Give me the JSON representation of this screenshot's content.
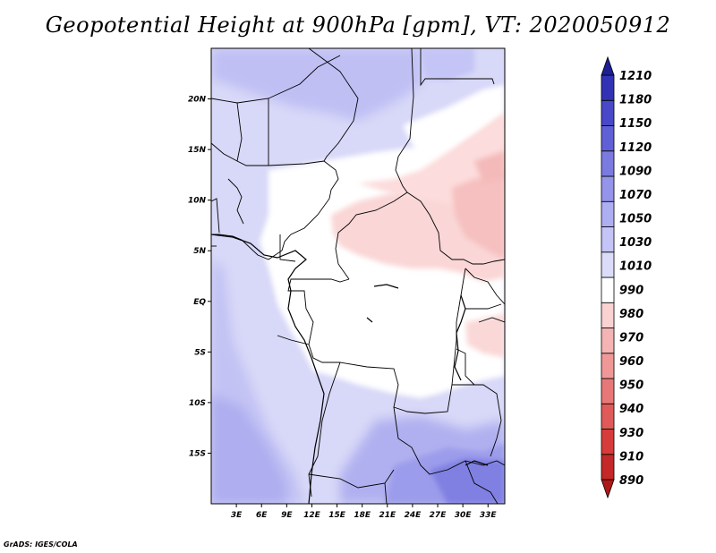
{
  "title": "Geopotential Height at 900hPa [gpm], VT: 2020050912",
  "credit": "GrADS: IGES/COLA",
  "map": {
    "lon_range": [
      0,
      35
    ],
    "lat_range": [
      -20,
      25
    ],
    "lat_labels": [
      {
        "lat": 20,
        "text": "20N"
      },
      {
        "lat": 15,
        "text": "15N"
      },
      {
        "lat": 10,
        "text": "10N"
      },
      {
        "lat": 5,
        "text": "5N"
      },
      {
        "lat": 0,
        "text": "EQ"
      },
      {
        "lat": -5,
        "text": "5S"
      },
      {
        "lat": -10,
        "text": "10S"
      },
      {
        "lat": -15,
        "text": "15S"
      }
    ],
    "lon_labels": [
      {
        "lon": 3,
        "text": "3E"
      },
      {
        "lon": 6,
        "text": "6E"
      },
      {
        "lon": 9,
        "text": "9E"
      },
      {
        "lon": 12,
        "text": "12E"
      },
      {
        "lon": 15,
        "text": "15E"
      },
      {
        "lon": 18,
        "text": "18E"
      },
      {
        "lon": 21,
        "text": "21E"
      },
      {
        "lon": 24,
        "text": "24E"
      },
      {
        "lon": 27,
        "text": "27E"
      },
      {
        "lon": 30,
        "text": "30E"
      },
      {
        "lon": 33,
        "text": "33E"
      }
    ]
  },
  "colorbar": {
    "levels": [
      "890",
      "910",
      "930",
      "940",
      "950",
      "960",
      "970",
      "980",
      "990",
      "1010",
      "1030",
      "1050",
      "1070",
      "1090",
      "1120",
      "1150",
      "1180",
      "1210"
    ],
    "colors": [
      "#b01818",
      "#c42828",
      "#d63c3c",
      "#e05a5a",
      "#e87878",
      "#f09898",
      "#f4b4b4",
      "#fad2d2",
      "#ffffff",
      "#dcdcfa",
      "#c4c4f6",
      "#aeaef2",
      "#9494ea",
      "#7a7ae0",
      "#6060d6",
      "#4848c8",
      "#3232b4",
      "#1e1e96"
    ]
  },
  "fields": {
    "hot_zone_value": 975,
    "mid_value": 1000,
    "south_low_value": 1060
  }
}
